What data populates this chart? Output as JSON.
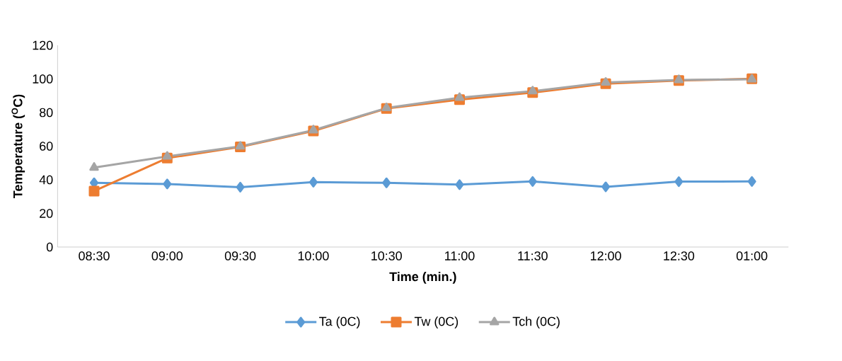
{
  "chart_data": {
    "type": "line",
    "xlabel": "Time (min.)",
    "ylabel": "Temperature ($^{O}$C)",
    "categories": [
      "08:30",
      "09:00",
      "09:30",
      "10:00",
      "10:30",
      "11:00",
      "11:30",
      "12:00",
      "12:30",
      "01:00"
    ],
    "series": [
      {
        "name": "Ta (0C)",
        "color": "#5b9bd5",
        "marker": "diamond",
        "values": [
          38.2,
          37.5,
          35.6,
          38.6,
          38.2,
          37.1,
          39.0,
          35.8,
          38.9,
          39.0
        ]
      },
      {
        "name": "Tw (0C)",
        "color": "#ed7d31",
        "marker": "square",
        "values": [
          33.3,
          52.9,
          59.6,
          69.0,
          82.4,
          87.7,
          91.9,
          97.1,
          99.0,
          100.1
        ]
      },
      {
        "name": "Tch (0C)",
        "color": "#a5a5a5",
        "marker": "triangle",
        "values": [
          47.3,
          53.9,
          59.9,
          69.5,
          82.7,
          88.8,
          92.7,
          97.9,
          99.4,
          99.8
        ]
      }
    ],
    "ylim": [
      0,
      120
    ],
    "yticks": [
      0,
      20,
      40,
      60,
      80,
      100,
      120
    ],
    "grid": false,
    "legend": "bottom"
  }
}
